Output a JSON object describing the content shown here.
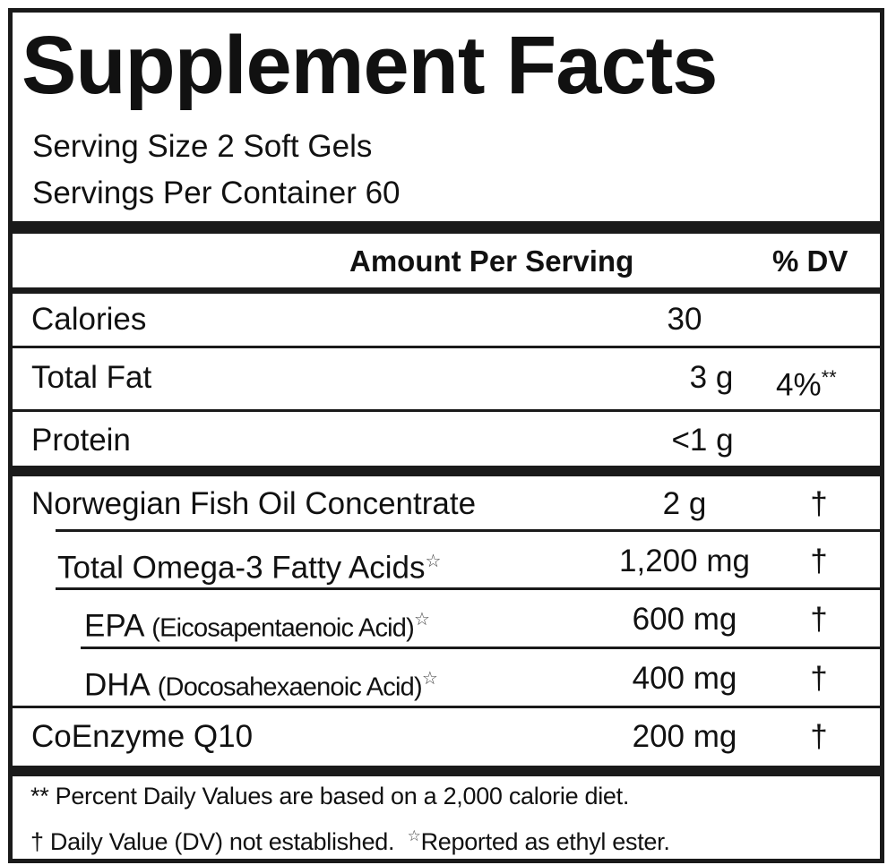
{
  "title": "Supplement Facts",
  "serving_size": "Serving Size 2 Soft Gels",
  "servings_per_container": "Servings Per Container 60",
  "header": {
    "amount": "Amount Per Serving",
    "dv": "% DV"
  },
  "basic_rows": [
    {
      "label": "Calories",
      "amount": "30",
      "dv": ""
    },
    {
      "label": "Total Fat",
      "amount": "3 g",
      "dv": "4%",
      "dv_mark": "**"
    },
    {
      "label": "Protein",
      "amount": "<1 g",
      "dv": ""
    }
  ],
  "ingredients": [
    {
      "label": "Norwegian Fish Oil Concentrate",
      "detail": "",
      "star": "",
      "amount": "2 g",
      "dv": "†"
    },
    {
      "label": "Total Omega-3 Fatty Acids",
      "detail": "",
      "star": "☆",
      "amount": "1,200 mg",
      "dv": "†"
    },
    {
      "label": "EPA",
      "detail": "(Eicosapentaenoic Acid)",
      "star": "☆",
      "amount": "600 mg",
      "dv": "†"
    },
    {
      "label": "DHA",
      "detail": "(Docosahexaenoic Acid)",
      "star": "☆",
      "amount": "400 mg",
      "dv": "†"
    },
    {
      "label": "CoEnzyme Q10",
      "detail": "",
      "star": "",
      "amount": "200 mg",
      "dv": "†"
    }
  ],
  "footnotes": {
    "line1": "** Percent Daily Values are based on a 2,000 calorie diet.",
    "line2a": "† Daily Value (DV) not established.",
    "line2_star": "☆",
    "line2b": "Reported as ethyl ester."
  }
}
